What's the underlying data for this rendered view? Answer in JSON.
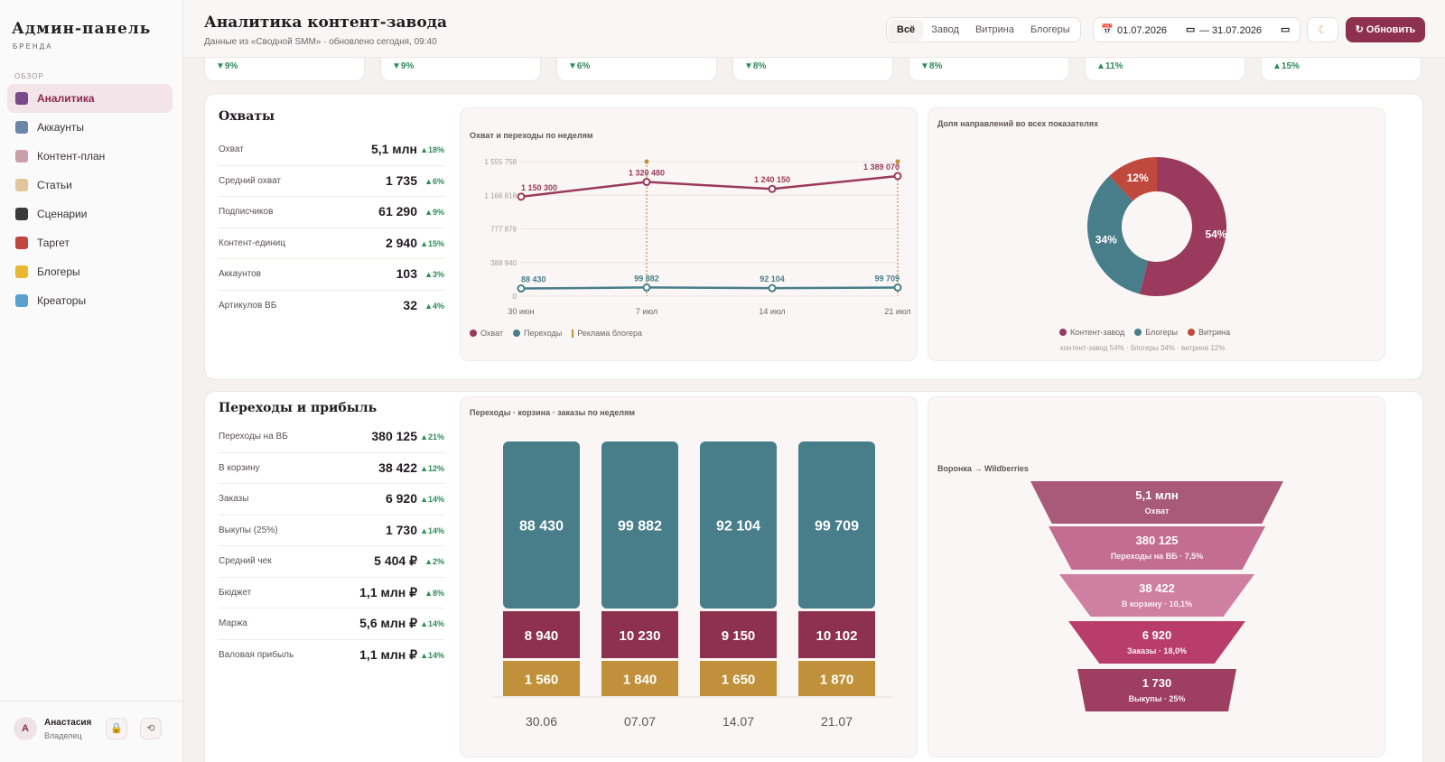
{
  "sidebar": {
    "brand_title": "Админ-панель",
    "brand_sub": "БРЕНДА",
    "section": "ОБЗОР",
    "items": [
      {
        "label": "Аналитика",
        "active": true,
        "icon": "bar-chart-icon",
        "color": "#7a4a8a"
      },
      {
        "label": "Аккаунты",
        "active": false,
        "icon": "users-icon",
        "color": "#6a86a8"
      },
      {
        "label": "Контент-план",
        "active": false,
        "icon": "calendar-icon",
        "color": "#c9a0a8"
      },
      {
        "label": "Статьи",
        "active": false,
        "icon": "memo-icon",
        "color": "#e0c79a"
      },
      {
        "label": "Сценарии",
        "active": false,
        "icon": "clapper-icon",
        "color": "#3a3a3a"
      },
      {
        "label": "Таргет",
        "active": false,
        "icon": "target-icon",
        "color": "#c2463e"
      },
      {
        "label": "Блогеры",
        "active": false,
        "icon": "star-icon",
        "color": "#e8b830"
      },
      {
        "label": "Креаторы",
        "active": false,
        "icon": "gem-icon",
        "color": "#5aa0d0"
      }
    ],
    "user": {
      "initial": "А",
      "name": "Анастасия",
      "role": "Владелец",
      "lock_icon": "🔒",
      "refresh_icon": "⟲"
    }
  },
  "header": {
    "title": "Аналитика контент-завода",
    "subtitle": "Данные из «Сводной SMM» · обновлено сегодня, 09:40",
    "filters": [
      {
        "label": "Всё",
        "active": true
      },
      {
        "label": "Завод",
        "active": false
      },
      {
        "label": "Витрина",
        "active": false
      },
      {
        "label": "Блогеры",
        "active": false
      }
    ],
    "date_icon": "📅",
    "date_from": "01.07.2026",
    "date_sep": "—",
    "date_to": "31.07.2026",
    "cal_icon": "▭",
    "theme_icon": "☾",
    "refresh_label": "↻ Обновить"
  },
  "kpi_deltas": [
    {
      "text": "▼9%",
      "dir": "down"
    },
    {
      "text": "▼9%",
      "dir": "down"
    },
    {
      "text": "▼6%",
      "dir": "down"
    },
    {
      "text": "▼8%",
      "dir": "down"
    },
    {
      "text": "▼8%",
      "dir": "down"
    },
    {
      "text": "▲11%",
      "dir": "up"
    },
    {
      "text": "▲15%",
      "dir": "up"
    }
  ],
  "reach": {
    "title": "Охваты",
    "metrics": [
      {
        "label": "Охват",
        "value": "5,1 млн",
        "delta": "▲18%"
      },
      {
        "label": "Средний охват",
        "value": "1 735",
        "delta": "▲6%"
      },
      {
        "label": "Подписчиков",
        "value": "61 290",
        "delta": "▲9%"
      },
      {
        "label": "Контент-единиц",
        "value": "2 940",
        "delta": "▲15%"
      },
      {
        "label": "Аккаунтов",
        "value": "103",
        "delta": "▲3%"
      },
      {
        "label": "Артикулов ВБ",
        "value": "32",
        "delta": "▲4%"
      }
    ],
    "line_panel_title": "Охват и переходы по неделям",
    "donut_panel_title": "Доля направлений во всех показателях",
    "donut_note": "контент-завод 54% · блогеры 34% · витрина 12%"
  },
  "profit": {
    "title": "Переходы и прибыль",
    "metrics": [
      {
        "label": "Переходы на ВБ",
        "value": "380 125",
        "delta": "▲21%"
      },
      {
        "label": "В корзину",
        "value": "38 422",
        "delta": "▲12%"
      },
      {
        "label": "Заказы",
        "value": "6 920",
        "delta": "▲14%"
      },
      {
        "label": "Выкупы (25%)",
        "value": "1 730",
        "delta": "▲14%"
      },
      {
        "label": "Средний чек",
        "value": "5 404 ₽",
        "delta": "▲2%"
      },
      {
        "label": "Бюджет",
        "value": "1,1 млн ₽",
        "delta": "▲8%"
      },
      {
        "label": "Маржа",
        "value": "5,6 млн ₽",
        "delta": "▲14%"
      },
      {
        "label": "Валовая прибыль",
        "value": "1,1 млн ₽",
        "delta": "▲14%"
      }
    ],
    "bar_panel_title": "Переходы · корзина · заказы по неделям",
    "funnel_panel_title": "Воронка → Wildberries"
  },
  "colors": {
    "accent": "#8e3150",
    "teal": "#477e8a",
    "gold": "#c0913a",
    "up": "#2e8b57",
    "down": "#2e8b57"
  },
  "chart_data": [
    {
      "type": "line",
      "title": "Охват и переходы по неделям",
      "x": [
        "30 июн",
        "7 июл",
        "14 июл",
        "21 июл"
      ],
      "yticks": [
        "0",
        "388 940",
        "777 879",
        "1 166 818",
        "1 555 758"
      ],
      "ylim": [
        0,
        1555758
      ],
      "series": [
        {
          "name": "Охват",
          "color": "#9a3a5c",
          "values": [
            1150300,
            1320480,
            1240150,
            1389070
          ],
          "labels": [
            "1 150 300",
            "1 320 480",
            "1 240 150",
            "1 389 070"
          ]
        },
        {
          "name": "Переходы",
          "color": "#477e8a",
          "values": [
            88430,
            99882,
            92104,
            99709
          ],
          "labels": [
            "88 430",
            "99 882",
            "92 104",
            "99 709"
          ]
        }
      ],
      "markers": {
        "name": "Реклама блогера",
        "color": "#c0913a",
        "at": [
          "7 июл",
          "21 июл"
        ]
      },
      "legend": "bottom-left"
    },
    {
      "type": "pie",
      "title": "Доля направлений во всех показателях",
      "slices": [
        {
          "name": "Контент-завод",
          "value": 54,
          "label": "54%",
          "color": "#9a3a5c"
        },
        {
          "name": "Блогеры",
          "value": 34,
          "label": "34%",
          "color": "#477e8a"
        },
        {
          "name": "Витрина",
          "value": 12,
          "label": "12%",
          "color": "#c0493e"
        }
      ],
      "legend": "bottom"
    },
    {
      "type": "bar",
      "title": "Переходы · корзина · заказы по неделям",
      "categories": [
        "30.06",
        "07.07",
        "14.07",
        "21.07"
      ],
      "series": [
        {
          "name": "Переходы",
          "color": "#477e8a",
          "values": [
            88430,
            99882,
            92104,
            99709
          ],
          "labels": [
            "88 430",
            "99 882",
            "92 104",
            "99 709"
          ]
        },
        {
          "name": "Корзина",
          "color": "#8e3150",
          "values": [
            8940,
            10230,
            9150,
            10102
          ],
          "labels": [
            "8 940",
            "10 230",
            "9 150",
            "10 102"
          ]
        },
        {
          "name": "Заказы",
          "color": "#c0913a",
          "values": [
            1560,
            1840,
            1650,
            1870
          ],
          "labels": [
            "1 560",
            "1 840",
            "1 650",
            "1 870"
          ]
        }
      ]
    },
    {
      "type": "funnel",
      "title": "Воронка → Wildberries",
      "stages": [
        {
          "value": "5,1 млн",
          "label": "Охват",
          "color": "#a85a78"
        },
        {
          "value": "380 125",
          "label": "Переходы на ВБ · 7,5%",
          "color": "#c36d92"
        },
        {
          "value": "38 422",
          "label": "В корзину · 10,1%",
          "color": "#cf7fa1"
        },
        {
          "value": "6 920",
          "label": "Заказы · 18,0%",
          "color": "#b93d6a"
        },
        {
          "value": "1 730",
          "label": "Выкупы · 25%",
          "color": "#9e3e60"
        }
      ]
    }
  ]
}
